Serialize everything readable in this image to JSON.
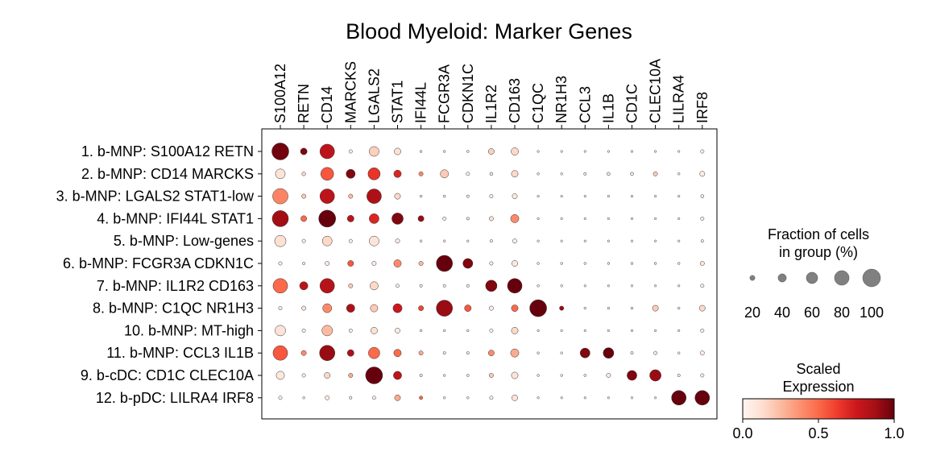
{
  "chart_data": {
    "type": "dotplot",
    "title": "Blood Myeloid: Marker Genes",
    "genes": [
      "S100A12",
      "RETN",
      "CD14",
      "MARCKS",
      "LGALS2",
      "STAT1",
      "IFI44L",
      "FCGR3A",
      "CDKN1C",
      "IL1R2",
      "CD163",
      "C1QC",
      "NR1H3",
      "CCL3",
      "IL1B",
      "CD1C",
      "CLEC10A",
      "LILRA4",
      "IRF8"
    ],
    "groups": [
      "1. b-MNP: S100A12 RETN",
      "2. b-MNP: CD14 MARCKS",
      "3. b-MNP: LGALS2 STAT1-low",
      "4. b-MNP: IFI44L STAT1",
      "5. b-MNP: Low-genes",
      "6. b-MNP: FCGR3A CDKN1C",
      "7. b-MNP: IL1R2 CD163",
      "8. b-MNP: C1QC NR1H3",
      "10. b-MNP: MT-high",
      "11. b-MNP: CCL3 IL1B",
      "9. b-cDC: CD1C CLEC10A",
      "12. b-pDC: LILRA4 IRF8"
    ],
    "fraction_pct": [
      [
        95,
        30,
        80,
        10,
        50,
        30,
        2,
        2,
        2,
        25,
        35,
        1,
        1,
        1,
        1,
        1,
        1,
        1,
        10
      ],
      [
        50,
        12,
        70,
        45,
        65,
        35,
        15,
        40,
        10,
        8,
        30,
        2,
        2,
        5,
        8,
        8,
        15,
        2,
        20
      ],
      [
        85,
        15,
        80,
        15,
        80,
        25,
        2,
        3,
        5,
        10,
        20,
        1,
        1,
        1,
        1,
        1,
        1,
        1,
        8
      ],
      [
        90,
        25,
        95,
        30,
        50,
        60,
        25,
        10,
        5,
        15,
        40,
        1,
        1,
        1,
        1,
        1,
        1,
        1,
        10
      ],
      [
        60,
        10,
        50,
        10,
        50,
        15,
        2,
        2,
        1,
        5,
        15,
        1,
        1,
        1,
        1,
        1,
        1,
        1,
        5
      ],
      [
        10,
        5,
        15,
        25,
        15,
        35,
        15,
        90,
        50,
        10,
        25,
        2,
        2,
        2,
        2,
        2,
        2,
        2,
        15
      ],
      [
        80,
        40,
        80,
        15,
        40,
        10,
        5,
        5,
        5,
        60,
        80,
        2,
        2,
        1,
        1,
        1,
        1,
        1,
        10
      ],
      [
        10,
        15,
        45,
        40,
        35,
        45,
        20,
        90,
        30,
        15,
        30,
        95,
        15,
        2,
        2,
        2,
        25,
        2,
        25
      ],
      [
        55,
        10,
        55,
        10,
        30,
        20,
        2,
        2,
        2,
        10,
        30,
        1,
        1,
        1,
        1,
        1,
        1,
        1,
        10
      ],
      [
        80,
        20,
        85,
        30,
        60,
        35,
        15,
        5,
        5,
        25,
        40,
        2,
        2,
        50,
        55,
        5,
        10,
        2,
        15
      ],
      [
        40,
        10,
        25,
        15,
        95,
        40,
        5,
        2,
        3,
        15,
        30,
        2,
        2,
        3,
        15,
        50,
        60,
        5,
        10
      ],
      [
        10,
        2,
        15,
        5,
        10,
        25,
        10,
        2,
        2,
        10,
        25,
        1,
        1,
        1,
        1,
        1,
        1,
        80,
        80
      ]
    ],
    "scaled_expression": [
      [
        0.98,
        0.95,
        0.8,
        0.05,
        0.18,
        0.12,
        0.05,
        0.03,
        0.03,
        0.18,
        0.15,
        0.02,
        0.02,
        0.02,
        0.02,
        0.02,
        0.02,
        0.02,
        0.03
      ],
      [
        0.1,
        0.15,
        0.55,
        0.95,
        0.65,
        0.7,
        0.4,
        0.2,
        0.05,
        0.08,
        0.15,
        0.02,
        0.02,
        0.05,
        0.08,
        0.05,
        0.2,
        0.02,
        0.05
      ],
      [
        0.42,
        0.2,
        0.8,
        0.25,
        0.85,
        0.15,
        0.05,
        0.03,
        0.03,
        0.05,
        0.08,
        0.02,
        0.02,
        0.02,
        0.02,
        0.02,
        0.02,
        0.02,
        0.03
      ],
      [
        0.88,
        0.5,
        1.0,
        0.8,
        0.7,
        0.95,
        0.9,
        0.05,
        0.05,
        0.1,
        0.4,
        0.02,
        0.02,
        0.02,
        0.02,
        0.02,
        0.02,
        0.02,
        0.05
      ],
      [
        0.12,
        0.05,
        0.15,
        0.05,
        0.1,
        0.05,
        0.02,
        0.02,
        0.02,
        0.02,
        0.03,
        0.02,
        0.02,
        0.02,
        0.02,
        0.02,
        0.02,
        0.02,
        0.02
      ],
      [
        0.05,
        0.02,
        0.05,
        0.55,
        0.05,
        0.4,
        0.25,
        1.0,
        0.95,
        0.05,
        0.08,
        0.02,
        0.02,
        0.02,
        0.02,
        0.02,
        0.02,
        0.02,
        0.08
      ],
      [
        0.5,
        0.8,
        0.82,
        0.2,
        0.15,
        0.05,
        0.05,
        0.02,
        0.02,
        0.95,
        1.0,
        0.02,
        0.02,
        0.02,
        0.02,
        0.02,
        0.02,
        0.02,
        0.05
      ],
      [
        0.05,
        0.1,
        0.4,
        0.85,
        0.2,
        0.75,
        0.6,
        0.9,
        0.55,
        0.05,
        0.5,
        1.0,
        0.9,
        0.02,
        0.02,
        0.02,
        0.2,
        0.02,
        0.15
      ],
      [
        0.1,
        0.05,
        0.25,
        0.05,
        0.12,
        0.05,
        0.02,
        0.02,
        0.02,
        0.02,
        0.15,
        0.02,
        0.02,
        0.02,
        0.02,
        0.02,
        0.02,
        0.02,
        0.03
      ],
      [
        0.55,
        0.4,
        0.9,
        0.85,
        0.5,
        0.5,
        0.3,
        0.05,
        0.05,
        0.4,
        0.3,
        0.02,
        0.02,
        0.95,
        1.0,
        0.05,
        0.08,
        0.02,
        0.05
      ],
      [
        0.08,
        0.05,
        0.15,
        0.3,
        1.0,
        0.8,
        0.1,
        0.02,
        0.02,
        0.2,
        0.1,
        0.02,
        0.02,
        0.02,
        0.05,
        0.95,
        0.9,
        0.05,
        0.05
      ],
      [
        0.05,
        0.02,
        0.05,
        0.05,
        0.05,
        0.3,
        0.5,
        0.02,
        0.02,
        0.05,
        0.1,
        0.02,
        0.02,
        0.02,
        0.02,
        0.02,
        0.02,
        1.0,
        1.0
      ]
    ],
    "size_legend": {
      "title_lines": [
        "Fraction of cells",
        "in group (%)"
      ],
      "values": [
        20,
        40,
        60,
        80,
        100
      ],
      "labels": [
        "20",
        "40",
        "60",
        "80",
        "100"
      ]
    },
    "color_legend": {
      "title_lines": [
        "Scaled",
        "Expression"
      ],
      "range": [
        0.0,
        1.0
      ],
      "tick_values": [
        0.0,
        0.5,
        1.0
      ],
      "tick_labels": [
        "0.0",
        "0.5",
        "1.0"
      ],
      "colormap": "Reds",
      "colors": [
        "#fff5f0",
        "#fee0d2",
        "#fcbba1",
        "#fc9272",
        "#fb6a4a",
        "#ef3b2c",
        "#cb181d",
        "#a50f15",
        "#67000d"
      ]
    },
    "grid": false
  }
}
